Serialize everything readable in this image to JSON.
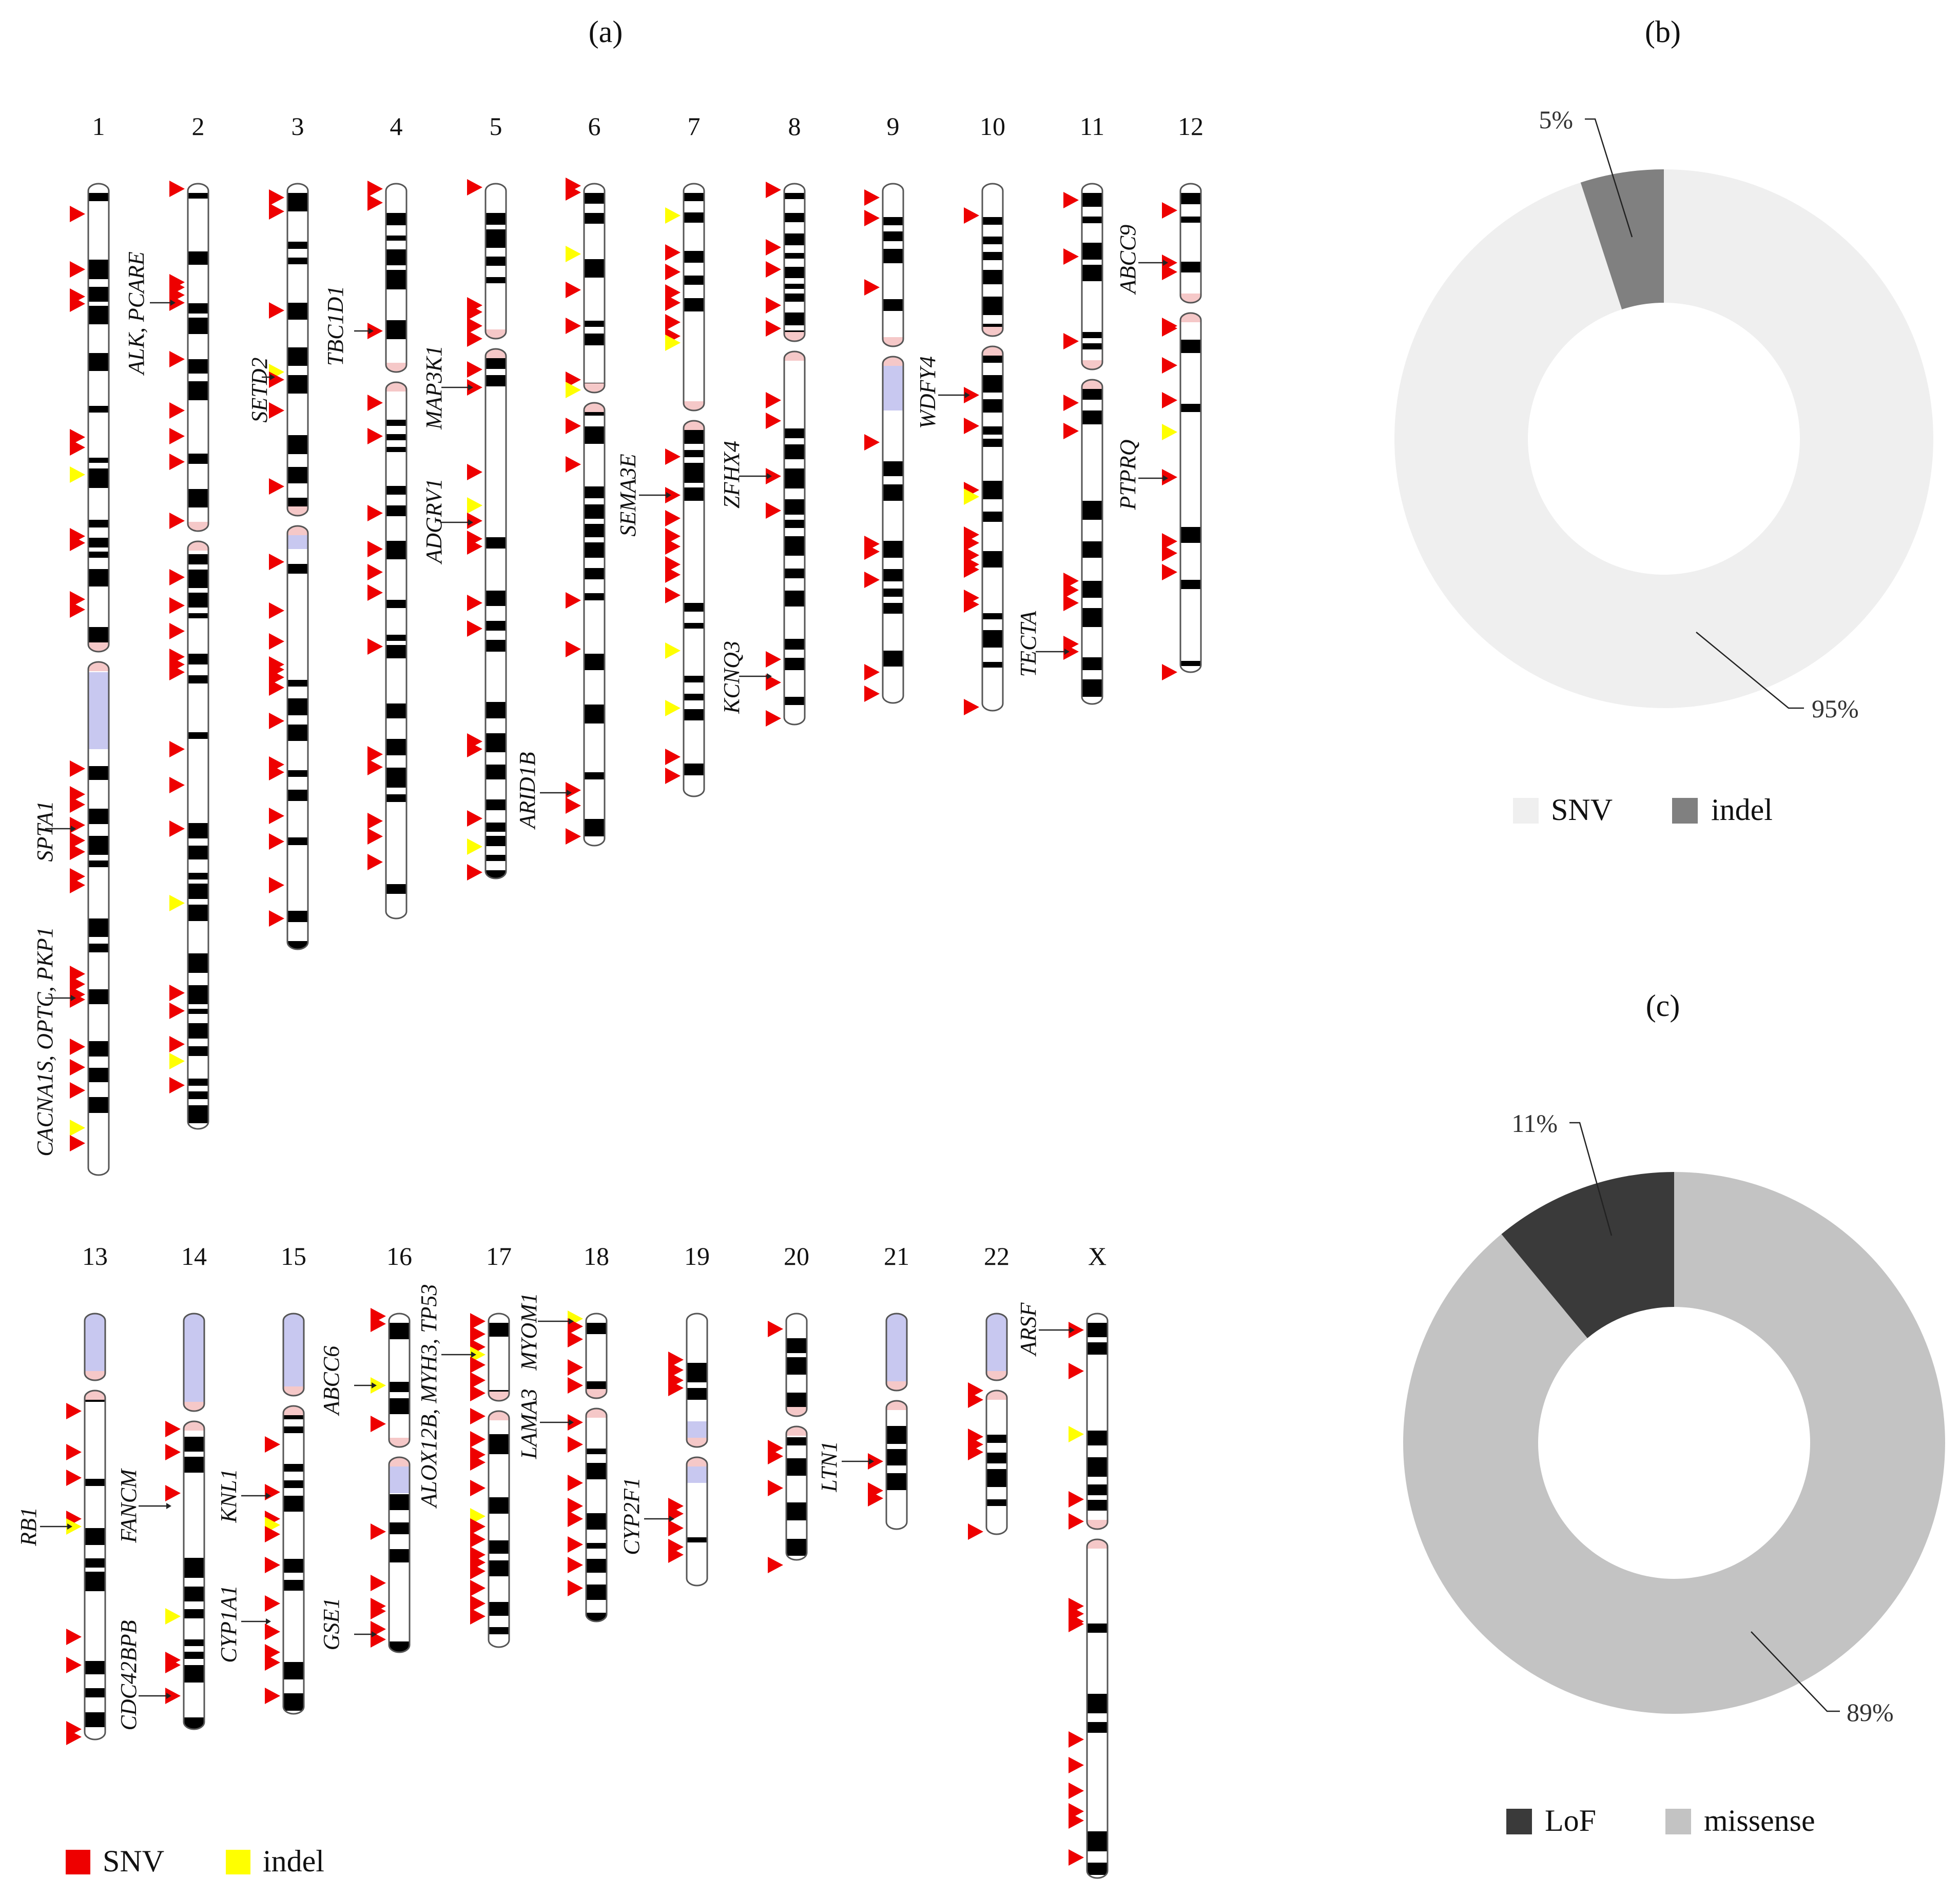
{
  "panel_labels": {
    "a": "(a)",
    "b": "(b)",
    "c": "(c)"
  },
  "colors": {
    "snv_marker": "#ee0000",
    "indel_marker": "#ffff00",
    "band_dark": "#000000",
    "centromere": "#f5c8c8",
    "heterochromatin": "#c8c8f0",
    "donut_snv": "#efefef",
    "donut_indel": "#808080",
    "donut_lof": "#3a3a3a",
    "donut_missense": "#c3c3c3"
  },
  "ideogram": {
    "chromosomes": [
      "1",
      "2",
      "3",
      "4",
      "5",
      "6",
      "7",
      "8",
      "9",
      "10",
      "11",
      "12",
      "13",
      "14",
      "15",
      "16",
      "17",
      "18",
      "19",
      "20",
      "21",
      "22",
      "X"
    ],
    "gene_labels": [
      {
        "chr": "1",
        "text": "SPTA1"
      },
      {
        "chr": "1",
        "text": "CACNA1S, OPTC, PKP1"
      },
      {
        "chr": "2",
        "text": "ALK, PCARE"
      },
      {
        "chr": "3",
        "text": "SETD2"
      },
      {
        "chr": "4",
        "text": "TBC1D1"
      },
      {
        "chr": "5",
        "text": "MAP3K1"
      },
      {
        "chr": "5",
        "text": "ADGRV1"
      },
      {
        "chr": "6",
        "text": "ARID1B"
      },
      {
        "chr": "7",
        "text": "SEMA3E"
      },
      {
        "chr": "8",
        "text": "ZFHX4"
      },
      {
        "chr": "8",
        "text": "KCNQ3"
      },
      {
        "chr": "10",
        "text": "WDFY4"
      },
      {
        "chr": "11",
        "text": "TECTA"
      },
      {
        "chr": "12",
        "text": "ABCC9"
      },
      {
        "chr": "12",
        "text": "PTPRQ"
      },
      {
        "chr": "13",
        "text": "RB1"
      },
      {
        "chr": "14",
        "text": "FANCM"
      },
      {
        "chr": "14",
        "text": "CDC42BPB"
      },
      {
        "chr": "15",
        "text": "KNL1"
      },
      {
        "chr": "15",
        "text": "CYP1A1"
      },
      {
        "chr": "16",
        "text": "ABCC6"
      },
      {
        "chr": "16",
        "text": "GSE1"
      },
      {
        "chr": "17",
        "text": "ALOX12B, MYH3, TP53"
      },
      {
        "chr": "18",
        "text": "MYOM1"
      },
      {
        "chr": "18",
        "text": "LAMA3"
      },
      {
        "chr": "19",
        "text": "CYP2F1"
      },
      {
        "chr": "21",
        "text": "LTN1"
      },
      {
        "chr": "X",
        "text": "ARSF"
      }
    ],
    "legend": [
      {
        "label": "SNV",
        "color": "#ee0000"
      },
      {
        "label": "indel",
        "color": "#ffff00"
      }
    ]
  },
  "chart_data": [
    {
      "type": "pie",
      "title": "(b)",
      "categories": [
        "SNV",
        "indel"
      ],
      "values": [
        95,
        5
      ],
      "labels": [
        "95%",
        "5%"
      ],
      "colors": [
        "#efefef",
        "#808080"
      ],
      "donut": true,
      "legend": "bottom"
    },
    {
      "type": "pie",
      "title": "(c)",
      "categories": [
        "LoF",
        "missense"
      ],
      "values": [
        11,
        89
      ],
      "labels": [
        "11%",
        "89%"
      ],
      "colors": [
        "#3a3a3a",
        "#c3c3c3"
      ],
      "donut": true,
      "legend": "bottom"
    }
  ]
}
